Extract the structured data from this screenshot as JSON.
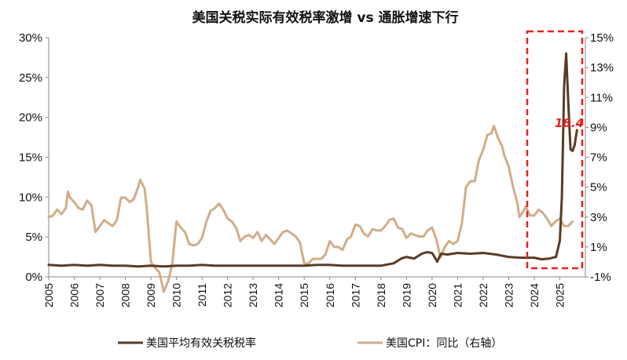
{
  "chart_data": {
    "type": "line",
    "title": "美国关税实际有效税率激增 vs 通胀增速下行",
    "x_tick_labels": [
      "2005",
      "2006",
      "2007",
      "2008",
      "2009",
      "2010",
      "2011",
      "2012",
      "2013",
      "2014",
      "2015",
      "2016",
      "2017",
      "2018",
      "2019",
      "2020",
      "2021",
      "2022",
      "2023",
      "2024",
      "2025"
    ],
    "y_left": {
      "ticks": [
        "0%",
        "5%",
        "10%",
        "15%",
        "20%",
        "25%",
        "30%"
      ],
      "range": [
        0,
        30
      ],
      "unit": "%"
    },
    "y_right": {
      "ticks": [
        "-1%",
        "1%",
        "3%",
        "5%",
        "7%",
        "9%",
        "11%",
        "13%",
        "15%"
      ],
      "range": [
        -1,
        15
      ],
      "unit": "%"
    },
    "annotation": {
      "text": "18.4",
      "color": "#e8201c"
    },
    "highlight_box_color": "#e8201c",
    "grid": false,
    "legend_position": "bottom",
    "series": [
      {
        "name": "美国平均有效关税税率",
        "axis": "left",
        "color": "#5b3b23",
        "points": [
          [
            2005.0,
            1.5
          ],
          [
            2005.5,
            1.4
          ],
          [
            2006.0,
            1.5
          ],
          [
            2006.5,
            1.4
          ],
          [
            2007.0,
            1.5
          ],
          [
            2007.5,
            1.4
          ],
          [
            2008.0,
            1.4
          ],
          [
            2008.5,
            1.3
          ],
          [
            2009.0,
            1.4
          ],
          [
            2009.5,
            1.3
          ],
          [
            2010.0,
            1.4
          ],
          [
            2010.5,
            1.4
          ],
          [
            2011.0,
            1.5
          ],
          [
            2011.5,
            1.4
          ],
          [
            2012.0,
            1.4
          ],
          [
            2012.5,
            1.4
          ],
          [
            2013.0,
            1.4
          ],
          [
            2013.5,
            1.4
          ],
          [
            2014.0,
            1.4
          ],
          [
            2014.5,
            1.4
          ],
          [
            2015.0,
            1.4
          ],
          [
            2015.5,
            1.5
          ],
          [
            2016.0,
            1.5
          ],
          [
            2016.5,
            1.4
          ],
          [
            2017.0,
            1.4
          ],
          [
            2017.5,
            1.4
          ],
          [
            2018.0,
            1.4
          ],
          [
            2018.5,
            1.7
          ],
          [
            2018.8,
            2.3
          ],
          [
            2019.0,
            2.5
          ],
          [
            2019.3,
            2.3
          ],
          [
            2019.6,
            2.9
          ],
          [
            2019.8,
            3.1
          ],
          [
            2020.0,
            3.0
          ],
          [
            2020.1,
            2.5
          ],
          [
            2020.2,
            1.9
          ],
          [
            2020.35,
            2.9
          ],
          [
            2020.6,
            2.8
          ],
          [
            2021.0,
            3.0
          ],
          [
            2021.5,
            2.9
          ],
          [
            2022.0,
            3.0
          ],
          [
            2022.5,
            2.8
          ],
          [
            2023.0,
            2.5
          ],
          [
            2023.5,
            2.4
          ],
          [
            2024.0,
            2.4
          ],
          [
            2024.3,
            2.2
          ],
          [
            2024.6,
            2.3
          ],
          [
            2024.85,
            2.5
          ],
          [
            2025.0,
            4.5
          ],
          [
            2025.08,
            10.0
          ],
          [
            2025.17,
            24.0
          ],
          [
            2025.25,
            28.0
          ],
          [
            2025.33,
            22.0
          ],
          [
            2025.42,
            16.0
          ],
          [
            2025.5,
            15.8
          ],
          [
            2025.58,
            16.5
          ],
          [
            2025.67,
            18.4
          ]
        ]
      },
      {
        "name": "美国CPI：同比（右轴）",
        "axis": "right",
        "color": "#d2ad8a",
        "points": [
          [
            2005.0,
            3.0
          ],
          [
            2005.17,
            3.1
          ],
          [
            2005.33,
            3.5
          ],
          [
            2005.5,
            3.2
          ],
          [
            2005.67,
            3.6
          ],
          [
            2005.75,
            4.7
          ],
          [
            2005.83,
            4.3
          ],
          [
            2006.0,
            4.0
          ],
          [
            2006.17,
            3.6
          ],
          [
            2006.33,
            3.5
          ],
          [
            2006.5,
            4.1
          ],
          [
            2006.67,
            3.8
          ],
          [
            2006.83,
            2.0
          ],
          [
            2007.0,
            2.4
          ],
          [
            2007.17,
            2.8
          ],
          [
            2007.33,
            2.6
          ],
          [
            2007.5,
            2.4
          ],
          [
            2007.67,
            2.8
          ],
          [
            2007.83,
            4.3
          ],
          [
            2008.0,
            4.3
          ],
          [
            2008.17,
            4.0
          ],
          [
            2008.33,
            4.2
          ],
          [
            2008.5,
            5.0
          ],
          [
            2008.58,
            5.5
          ],
          [
            2008.75,
            4.9
          ],
          [
            2008.83,
            3.7
          ],
          [
            2009.0,
            0.0
          ],
          [
            2009.17,
            -0.4
          ],
          [
            2009.33,
            -0.7
          ],
          [
            2009.5,
            -2.0
          ],
          [
            2009.67,
            -1.3
          ],
          [
            2009.83,
            -0.2
          ],
          [
            2010.0,
            2.7
          ],
          [
            2010.17,
            2.3
          ],
          [
            2010.33,
            2.0
          ],
          [
            2010.5,
            1.2
          ],
          [
            2010.67,
            1.1
          ],
          [
            2010.83,
            1.2
          ],
          [
            2011.0,
            1.6
          ],
          [
            2011.17,
            2.7
          ],
          [
            2011.33,
            3.4
          ],
          [
            2011.5,
            3.6
          ],
          [
            2011.67,
            3.9
          ],
          [
            2011.83,
            3.5
          ],
          [
            2012.0,
            2.9
          ],
          [
            2012.17,
            2.7
          ],
          [
            2012.33,
            2.3
          ],
          [
            2012.5,
            1.4
          ],
          [
            2012.67,
            1.7
          ],
          [
            2012.83,
            1.8
          ],
          [
            2013.0,
            1.6
          ],
          [
            2013.17,
            2.0
          ],
          [
            2013.33,
            1.4
          ],
          [
            2013.5,
            1.8
          ],
          [
            2013.67,
            1.5
          ],
          [
            2013.83,
            1.2
          ],
          [
            2014.0,
            1.6
          ],
          [
            2014.17,
            2.0
          ],
          [
            2014.33,
            2.1
          ],
          [
            2014.5,
            1.9
          ],
          [
            2014.67,
            1.7
          ],
          [
            2014.83,
            1.3
          ],
          [
            2015.0,
            -0.1
          ],
          [
            2015.17,
            -0.1
          ],
          [
            2015.33,
            0.2
          ],
          [
            2015.5,
            0.2
          ],
          [
            2015.67,
            0.2
          ],
          [
            2015.83,
            0.5
          ],
          [
            2016.0,
            1.4
          ],
          [
            2016.17,
            1.0
          ],
          [
            2016.33,
            1.0
          ],
          [
            2016.5,
            0.8
          ],
          [
            2016.67,
            1.5
          ],
          [
            2016.83,
            1.7
          ],
          [
            2017.0,
            2.5
          ],
          [
            2017.17,
            2.4
          ],
          [
            2017.33,
            1.9
          ],
          [
            2017.5,
            1.7
          ],
          [
            2017.67,
            2.2
          ],
          [
            2017.83,
            2.1
          ],
          [
            2018.0,
            2.1
          ],
          [
            2018.17,
            2.4
          ],
          [
            2018.33,
            2.8
          ],
          [
            2018.5,
            2.9
          ],
          [
            2018.67,
            2.3
          ],
          [
            2018.83,
            2.2
          ],
          [
            2019.0,
            1.6
          ],
          [
            2019.17,
            1.9
          ],
          [
            2019.33,
            1.8
          ],
          [
            2019.5,
            1.7
          ],
          [
            2019.67,
            1.7
          ],
          [
            2019.83,
            2.1
          ],
          [
            2020.0,
            2.3
          ],
          [
            2020.17,
            1.5
          ],
          [
            2020.33,
            0.3
          ],
          [
            2020.5,
            1.0
          ],
          [
            2020.67,
            1.4
          ],
          [
            2020.83,
            1.2
          ],
          [
            2021.0,
            1.4
          ],
          [
            2021.17,
            2.6
          ],
          [
            2021.33,
            5.0
          ],
          [
            2021.5,
            5.4
          ],
          [
            2021.67,
            5.4
          ],
          [
            2021.83,
            6.8
          ],
          [
            2022.0,
            7.5
          ],
          [
            2022.17,
            8.5
          ],
          [
            2022.33,
            8.6
          ],
          [
            2022.42,
            9.1
          ],
          [
            2022.58,
            8.3
          ],
          [
            2022.75,
            7.7
          ],
          [
            2022.83,
            7.1
          ],
          [
            2023.0,
            6.4
          ],
          [
            2023.17,
            5.0
          ],
          [
            2023.33,
            4.0
          ],
          [
            2023.42,
            3.0
          ],
          [
            2023.5,
            3.2
          ],
          [
            2023.67,
            3.7
          ],
          [
            2023.83,
            3.1
          ],
          [
            2024.0,
            3.1
          ],
          [
            2024.17,
            3.5
          ],
          [
            2024.33,
            3.3
          ],
          [
            2024.5,
            2.9
          ],
          [
            2024.67,
            2.4
          ],
          [
            2024.83,
            2.7
          ],
          [
            2025.0,
            2.9
          ],
          [
            2025.17,
            2.4
          ],
          [
            2025.33,
            2.4
          ],
          [
            2025.5,
            2.7
          ]
        ]
      }
    ]
  }
}
